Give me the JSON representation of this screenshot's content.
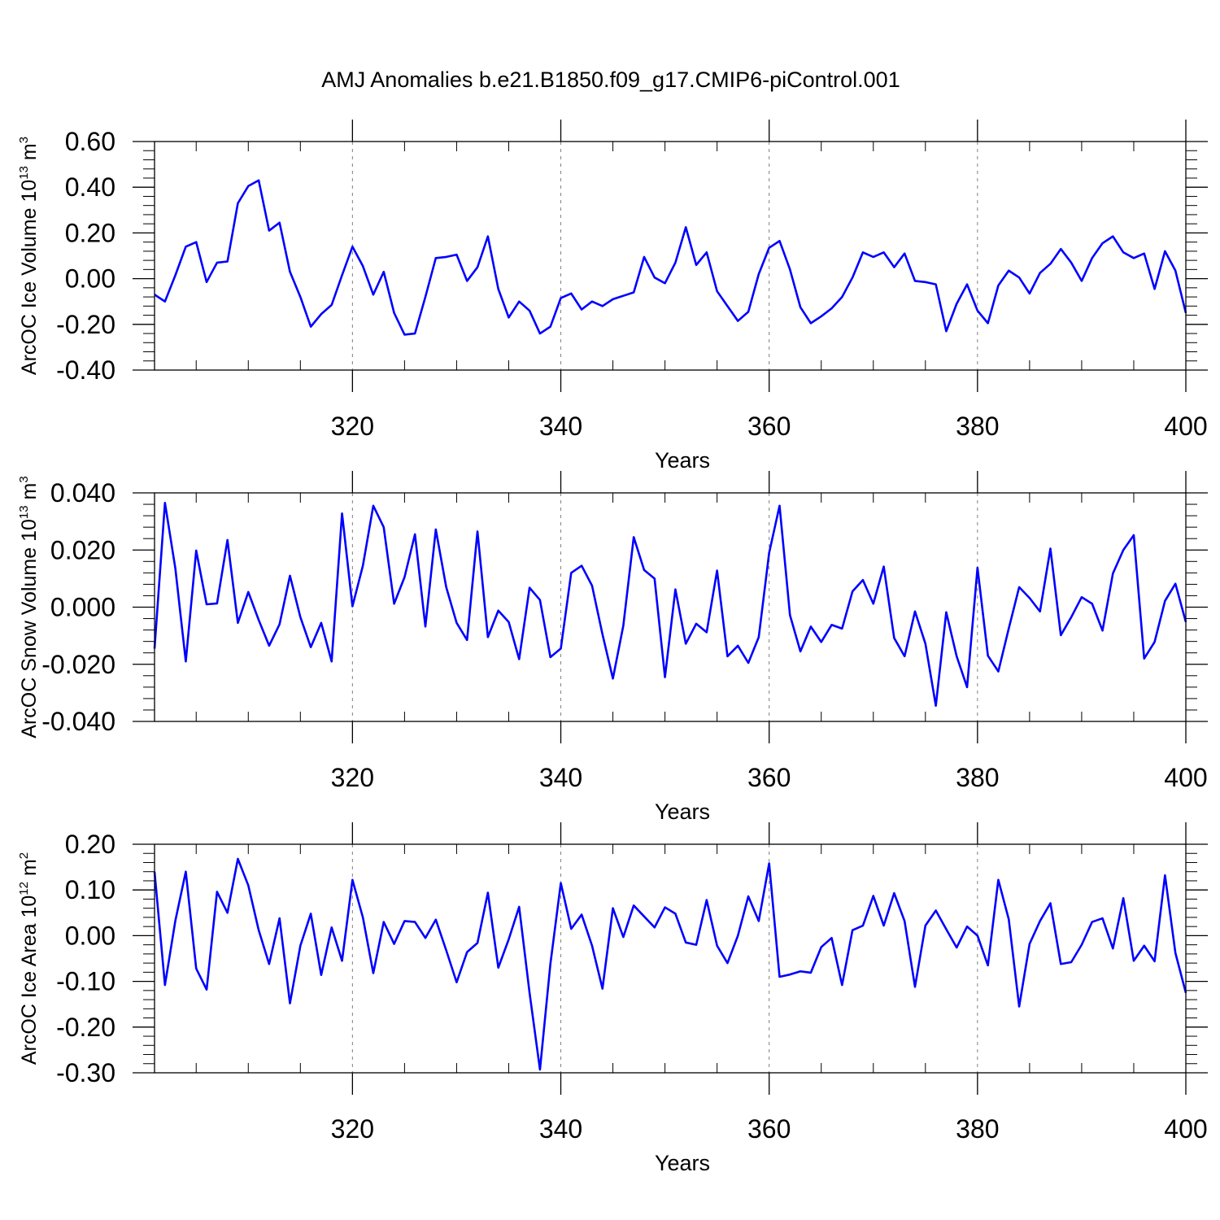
{
  "title": "AMJ Anomalies b.e21.B1850.f09_g17.CMIP6-piControl.001",
  "colors": {
    "series": "#0000ff",
    "axis": "#000000",
    "grid": "#808080"
  },
  "chart_data": [
    {
      "type": "line",
      "xlabel": "Years",
      "ylabel": {
        "text": "ArcOC Ice Volume 10",
        "exp": "13",
        "unit": "m",
        "unit_exp": "3"
      },
      "xlim": [
        301,
        400
      ],
      "ylim": [
        -0.4,
        0.6
      ],
      "xticks": [
        320,
        340,
        360,
        380,
        400
      ],
      "yticks": [
        "-0.40",
        "-0.20",
        "0.00",
        "0.20",
        "0.40",
        "0.60"
      ],
      "ytick_values": [
        -0.4,
        -0.2,
        0.0,
        0.2,
        0.4,
        0.6
      ],
      "grid": "dashed vertical lines at major x ticks",
      "x_start": 301,
      "values": [
        -0.07,
        -0.1,
        0.015,
        0.14,
        0.16,
        -0.015,
        0.07,
        0.075,
        0.33,
        0.405,
        0.43,
        0.21,
        0.245,
        0.03,
        -0.08,
        -0.21,
        -0.155,
        -0.115,
        0.015,
        0.14,
        0.055,
        -0.07,
        0.03,
        -0.15,
        -0.245,
        -0.24,
        -0.08,
        0.09,
        0.095,
        0.105,
        -0.01,
        0.05,
        0.185,
        -0.045,
        -0.17,
        -0.1,
        -0.14,
        -0.24,
        -0.21,
        -0.085,
        -0.065,
        -0.135,
        -0.1,
        -0.12,
        -0.09,
        -0.075,
        -0.06,
        0.095,
        0.005,
        -0.02,
        0.07,
        0.225,
        0.06,
        0.115,
        -0.055,
        -0.12,
        -0.185,
        -0.145,
        0.02,
        0.135,
        0.165,
        0.04,
        -0.125,
        -0.195,
        -0.165,
        -0.13,
        -0.08,
        0.005,
        0.115,
        0.095,
        0.115,
        0.05,
        0.11,
        -0.01,
        -0.015,
        -0.025,
        -0.23,
        -0.11,
        -0.025,
        -0.14,
        -0.195,
        -0.03,
        0.035,
        0.005,
        -0.065,
        0.025,
        0.065,
        0.13,
        0.07,
        -0.01,
        0.09,
        0.155,
        0.185,
        0.115,
        0.09,
        0.11,
        -0.045,
        0.12,
        0.035,
        -0.15
      ]
    },
    {
      "type": "line",
      "xlabel": "Years",
      "ylabel": {
        "text": "ArcOC Snow Volume 10",
        "exp": "13",
        "unit": "m",
        "unit_exp": "3"
      },
      "xlim": [
        301,
        400
      ],
      "ylim": [
        -0.04,
        0.04
      ],
      "xticks": [
        320,
        340,
        360,
        380,
        400
      ],
      "yticks": [
        "-0.040",
        "-0.020",
        "0.000",
        "0.020",
        "0.040"
      ],
      "ytick_values": [
        -0.04,
        -0.02,
        0.0,
        0.02,
        0.04
      ],
      "grid": "dashed vertical lines at major x ticks",
      "x_start": 301,
      "values": [
        -0.0145,
        0.0365,
        0.0135,
        -0.019,
        0.0198,
        0.001,
        0.0013,
        0.0235,
        -0.0055,
        0.0053,
        -0.0045,
        -0.0135,
        -0.006,
        0.011,
        -0.0035,
        -0.014,
        -0.0055,
        -0.019,
        0.0328,
        0.0003,
        0.0145,
        0.0355,
        0.028,
        0.0012,
        0.0105,
        0.0255,
        -0.0068,
        0.0272,
        0.007,
        -0.0055,
        -0.0115,
        0.0265,
        -0.0105,
        -0.0012,
        -0.0052,
        -0.0182,
        0.0068,
        0.0025,
        -0.0175,
        -0.0145,
        0.012,
        0.0145,
        0.0075,
        -0.0095,
        -0.025,
        -0.0065,
        0.0245,
        0.013,
        0.01,
        -0.0245,
        0.0062,
        -0.0128,
        -0.0058,
        -0.0088,
        0.0128,
        -0.0172,
        -0.0135,
        -0.0195,
        -0.0105,
        0.019,
        0.0355,
        -0.0028,
        -0.0155,
        -0.0068,
        -0.0122,
        -0.0062,
        -0.0075,
        0.0055,
        0.0095,
        0.0012,
        0.0142,
        -0.0108,
        -0.0172,
        -0.0015,
        -0.0128,
        -0.0345,
        -0.0018,
        -0.0172,
        -0.028,
        0.0138,
        -0.017,
        -0.0225,
        -0.0075,
        0.007,
        0.0032,
        -0.0015,
        0.0205,
        -0.0098,
        -0.0035,
        0.0035,
        0.0012,
        -0.0082,
        0.0118,
        0.02,
        0.0252,
        -0.018,
        -0.0122,
        0.0022,
        0.0082,
        -0.0052
      ]
    },
    {
      "type": "line",
      "xlabel": "Years",
      "ylabel": {
        "text": "ArcOC Ice Area 10",
        "exp": "12",
        "unit": "m",
        "unit_exp": "2"
      },
      "xlim": [
        301,
        400
      ],
      "ylim": [
        -0.3,
        0.2
      ],
      "xticks": [
        320,
        340,
        360,
        380,
        400
      ],
      "yticks": [
        "-0.30",
        "-0.20",
        "-0.10",
        "0.00",
        "0.10",
        "0.20"
      ],
      "ytick_values": [
        -0.3,
        -0.2,
        -0.1,
        0.0,
        0.1,
        0.2
      ],
      "grid": "dashed vertical lines at major x ticks",
      "x_start": 301,
      "values": [
        0.14,
        -0.108,
        0.033,
        0.14,
        -0.072,
        -0.118,
        0.096,
        0.05,
        0.168,
        0.11,
        0.012,
        -0.062,
        0.038,
        -0.148,
        -0.022,
        0.048,
        -0.086,
        0.018,
        -0.055,
        0.122,
        0.04,
        -0.082,
        0.03,
        -0.018,
        0.032,
        0.03,
        -0.005,
        0.035,
        -0.032,
        -0.102,
        -0.036,
        -0.016,
        0.094,
        -0.07,
        -0.008,
        0.063,
        -0.125,
        -0.293,
        -0.062,
        0.115,
        0.015,
        0.046,
        -0.022,
        -0.116,
        0.06,
        -0.003,
        0.066,
        0.042,
        0.018,
        0.062,
        0.048,
        -0.015,
        -0.02,
        0.078,
        -0.022,
        -0.06,
        0.0,
        0.086,
        0.032,
        0.158,
        -0.09,
        -0.085,
        -0.078,
        -0.081,
        -0.025,
        -0.005,
        -0.108,
        0.012,
        0.022,
        0.087,
        0.022,
        0.093,
        0.032,
        -0.112,
        0.022,
        0.055,
        0.014,
        -0.026,
        0.02,
        0.0,
        -0.065,
        0.122,
        0.036,
        -0.155,
        -0.018,
        0.032,
        0.071,
        -0.062,
        -0.058,
        -0.02,
        0.03,
        0.038,
        -0.028,
        0.082,
        -0.055,
        -0.022,
        -0.056,
        0.132,
        -0.038,
        -0.125
      ]
    }
  ]
}
